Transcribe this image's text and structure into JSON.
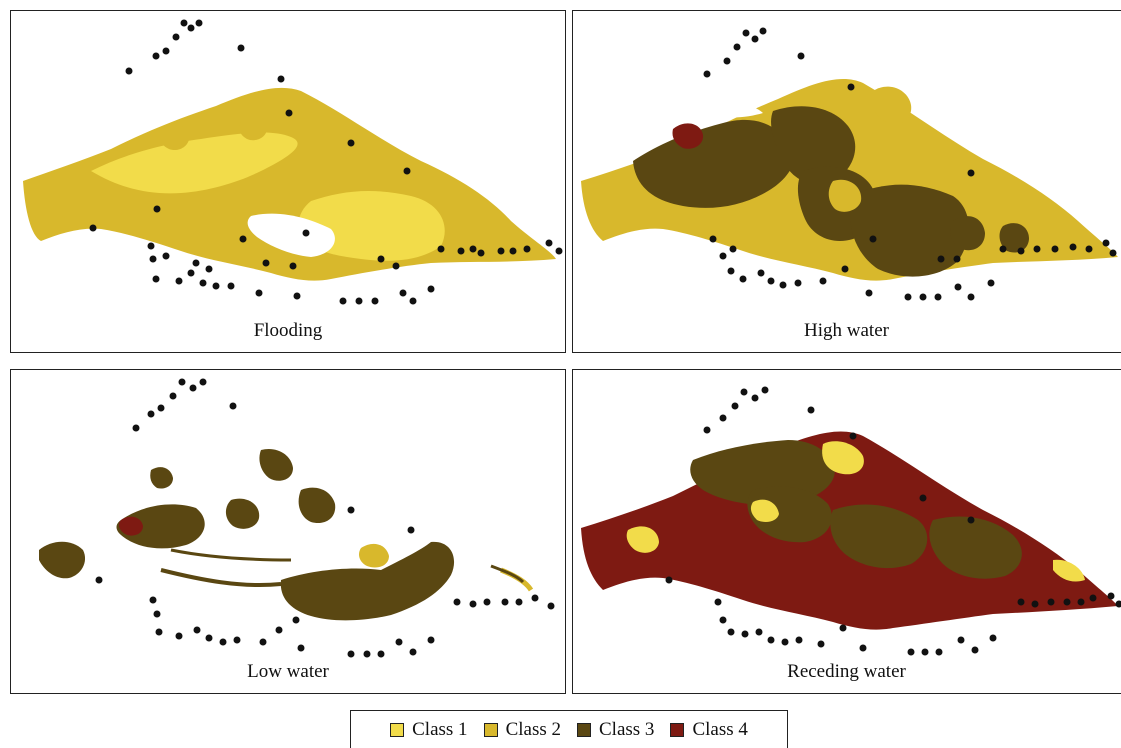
{
  "panels": [
    {
      "caption": "Flooding"
    },
    {
      "caption": "High water"
    },
    {
      "caption": "Low water"
    },
    {
      "caption": "Receding water"
    }
  ],
  "legend": [
    {
      "label": "Class 1",
      "color": "#f2dc4a"
    },
    {
      "label": "Class 2",
      "color": "#d8b82c"
    },
    {
      "label": "Class 3",
      "color": "#5a4712"
    },
    {
      "label": "Class 4",
      "color": "#7e1a12"
    }
  ],
  "colors": {
    "class1": "#f2dc4a",
    "class2": "#d8b82c",
    "class3": "#5a4712",
    "class4": "#7e1a12",
    "marker": "#111111"
  }
}
